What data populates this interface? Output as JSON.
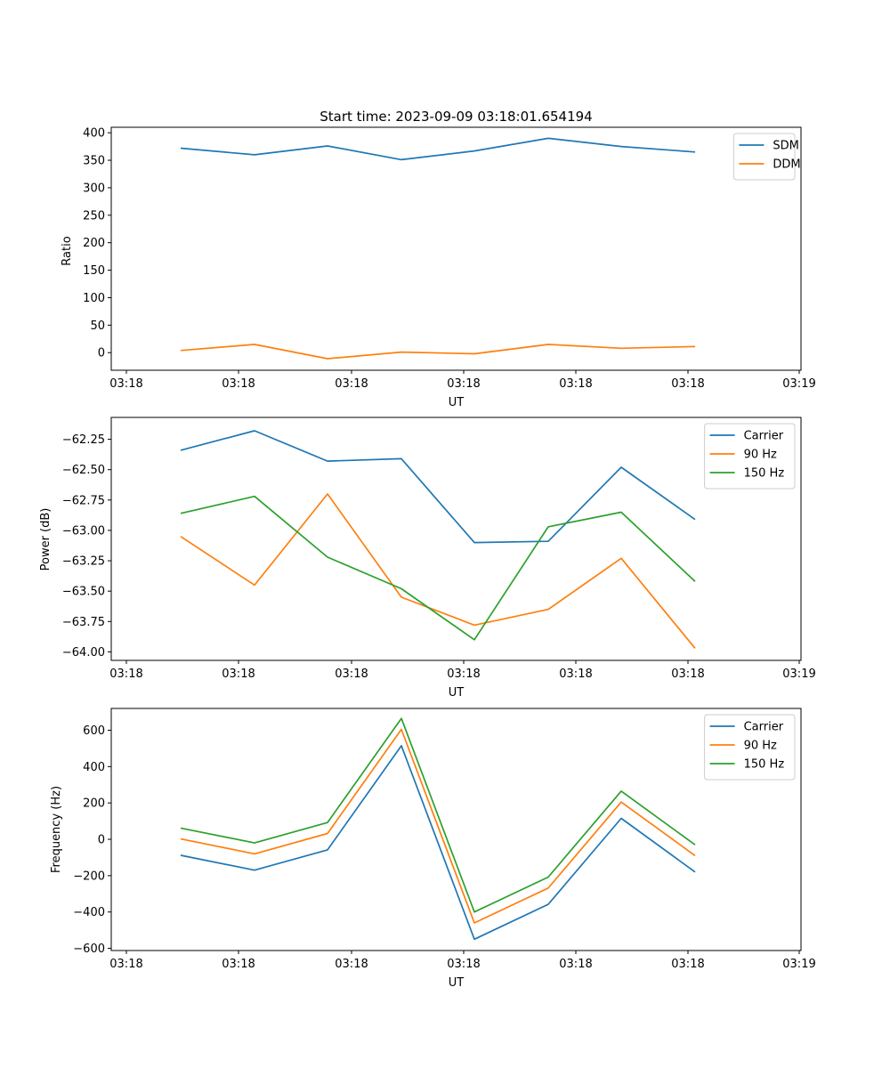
{
  "chart_data": [
    {
      "type": "line",
      "title": "Start time: 2023-09-09 03:18:01.654194",
      "xlabel": "UT",
      "ylabel": "Ratio",
      "x_tick_labels": [
        "03:18",
        "03:18",
        "03:18",
        "03:18",
        "03:18",
        "03:18",
        "03:18"
      ],
      "x_last_tick_label": "03:19",
      "yticks": [
        0,
        50,
        100,
        150,
        200,
        250,
        300,
        350,
        400
      ],
      "ytick_labels": [
        "0",
        "50",
        "100",
        "150",
        "200",
        "250",
        "300",
        "350",
        "400"
      ],
      "ylim": [
        -32,
        410
      ],
      "legend_position": "upper right",
      "series": [
        {
          "name": "SDM",
          "color": "#1f77b4",
          "values": [
            372,
            360,
            376,
            351,
            367,
            390,
            375,
            365
          ]
        },
        {
          "name": "DDM",
          "color": "#ff7f0e",
          "values": [
            4,
            15,
            -11,
            1,
            -2,
            15,
            8,
            11
          ]
        }
      ]
    },
    {
      "type": "line",
      "title": "",
      "xlabel": "UT",
      "ylabel": "Power (dB)",
      "x_tick_labels": [
        "03:18",
        "03:18",
        "03:18",
        "03:18",
        "03:18",
        "03:18",
        "03:18"
      ],
      "x_last_tick_label": "03:19",
      "yticks": [
        -64.0,
        -63.75,
        -63.5,
        -63.25,
        -63.0,
        -62.75,
        -62.5,
        -62.25
      ],
      "ytick_labels": [
        "−64.00",
        "−63.75",
        "−63.50",
        "−63.25",
        "−63.00",
        "−62.75",
        "−62.50",
        "−62.25"
      ],
      "ylim": [
        -64.07,
        -62.07
      ],
      "legend_position": "upper right",
      "series": [
        {
          "name": "Carrier",
          "color": "#1f77b4",
          "values": [
            -62.34,
            -62.18,
            -62.43,
            -62.41,
            -63.1,
            -63.09,
            -62.48,
            -62.91
          ]
        },
        {
          "name": "90 Hz",
          "color": "#ff7f0e",
          "values": [
            -63.05,
            -63.45,
            -62.7,
            -63.55,
            -63.78,
            -63.65,
            -63.23,
            -63.97
          ]
        },
        {
          "name": "150 Hz",
          "color": "#2ca02c",
          "values": [
            -62.86,
            -62.72,
            -63.22,
            -63.48,
            -63.9,
            -62.97,
            -62.85,
            -63.42
          ]
        }
      ]
    },
    {
      "type": "line",
      "title": "",
      "xlabel": "UT",
      "ylabel": "Frequency (Hz)",
      "x_tick_labels": [
        "03:18",
        "03:18",
        "03:18",
        "03:18",
        "03:18",
        "03:18",
        "03:18"
      ],
      "x_last_tick_label": "03:19",
      "yticks": [
        -600,
        -400,
        -200,
        0,
        200,
        400,
        600
      ],
      "ytick_labels": [
        "−600",
        "−400",
        "−200",
        "0",
        "200",
        "400",
        "600"
      ],
      "ylim": [
        -612,
        720
      ],
      "legend_position": "upper right",
      "series": [
        {
          "name": "Carrier",
          "color": "#1f77b4",
          "values": [
            -88,
            -170,
            -58,
            515,
            -550,
            -358,
            115,
            -180
          ]
        },
        {
          "name": "90 Hz",
          "color": "#ff7f0e",
          "values": [
            2,
            -80,
            32,
            605,
            -460,
            -268,
            205,
            -90
          ]
        },
        {
          "name": "150 Hz",
          "color": "#2ca02c",
          "values": [
            62,
            -20,
            92,
            665,
            -400,
            -208,
            265,
            -30
          ]
        }
      ]
    }
  ]
}
